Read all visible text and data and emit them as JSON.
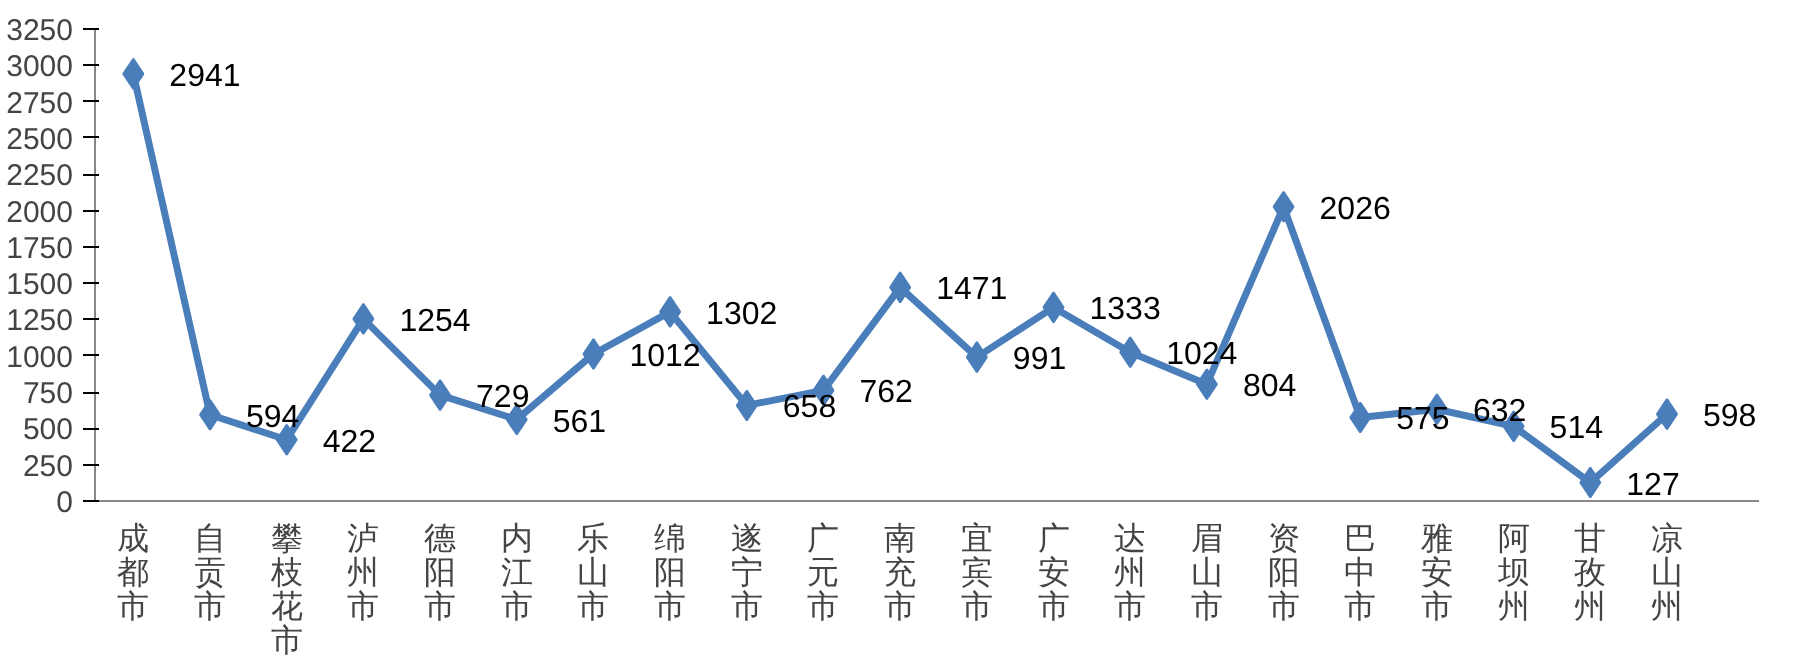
{
  "chart_data": {
    "type": "line",
    "categories": [
      "成都市",
      "自贡市",
      "攀枝花市",
      "泸州市",
      "德阳市",
      "内江市",
      "乐山市",
      "绵阳市",
      "遂宁市",
      "广元市",
      "南充市",
      "宜宾市",
      "广安市",
      "达州市",
      "眉山市",
      "资阳市",
      "巴中市",
      "雅安市",
      "阿坝州",
      "甘孜州",
      "凉山州"
    ],
    "series": [
      {
        "color": "#4a7ebb",
        "values": [
          2941,
          594,
          422,
          1254,
          729,
          561,
          1012,
          1302,
          658,
          762,
          1471,
          991,
          1333,
          1024,
          804,
          2026,
          575,
          632,
          514,
          127,
          598
        ]
      }
    ],
    "ylim": [
      0,
      3250
    ],
    "yticks": [
      0,
      250,
      500,
      750,
      1000,
      1250,
      1500,
      1750,
      2000,
      2250,
      2500,
      2750,
      3000,
      3250
    ],
    "marker": "diamond",
    "line_style": "solid",
    "data_labels": true
  }
}
